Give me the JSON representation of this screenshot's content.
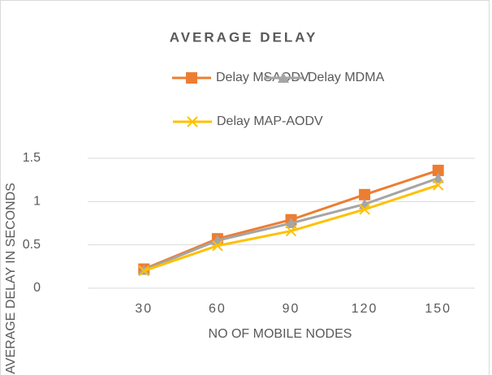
{
  "chart_data": {
    "type": "line",
    "title": "AVERAGE DELAY",
    "x_label": "NO OF MOBILE NODES",
    "y_label": "AVERAGE DELAY IN SECONDS",
    "categories": [
      "30",
      "60",
      "90",
      "120",
      "150"
    ],
    "series": [
      {
        "name": "Delay MSAODV",
        "color": "#ed7d31",
        "marker": "square",
        "values": [
          0.22,
          0.57,
          0.79,
          1.08,
          1.36
        ]
      },
      {
        "name": "Delay MDMA",
        "color": "#a5a5a5",
        "marker": "triangle",
        "values": [
          0.21,
          0.55,
          0.75,
          0.97,
          1.27
        ]
      },
      {
        "name": "Delay MAP-AODV",
        "color": "#ffc000",
        "marker": "x",
        "values": [
          0.2,
          0.49,
          0.66,
          0.91,
          1.19
        ]
      }
    ],
    "ylim": [
      0,
      1.5
    ],
    "yticks": [
      0,
      0.5,
      1,
      1.5
    ],
    "grid": true,
    "legend": "top"
  }
}
